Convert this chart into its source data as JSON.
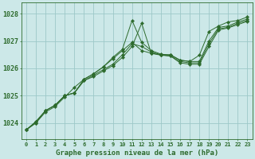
{
  "title": "Graphe pression niveau de la mer (hPa)",
  "xlabel_hours": [
    0,
    1,
    2,
    3,
    4,
    5,
    6,
    7,
    8,
    9,
    10,
    11,
    12,
    13,
    14,
    15,
    16,
    17,
    18,
    19,
    20,
    21,
    22,
    23
  ],
  "ylim": [
    1023.4,
    1028.4
  ],
  "yticks": [
    1024,
    1025,
    1026,
    1027,
    1028
  ],
  "bg_color": "#cce8e8",
  "grid_color": "#9dc8c8",
  "line_color": "#2d6b2d",
  "series": [
    [
      1023.75,
      1024.0,
      1024.45,
      1024.65,
      1025.0,
      1025.1,
      1025.6,
      1025.8,
      1026.05,
      1026.35,
      1026.65,
      1026.95,
      1026.65,
      1026.55,
      1026.5,
      1026.5,
      1026.3,
      1026.25,
      1026.25,
      1027.0,
      1027.5,
      1027.55,
      1027.7,
      1027.8
    ],
    [
      1023.75,
      1024.05,
      1024.45,
      1024.65,
      1025.0,
      1025.1,
      1025.55,
      1025.75,
      1025.95,
      1026.15,
      1026.5,
      1026.9,
      1026.8,
      1026.6,
      1026.5,
      1026.45,
      1026.25,
      1026.2,
      1026.2,
      1026.9,
      1027.45,
      1027.5,
      1027.65,
      1027.75
    ],
    [
      1023.75,
      1024.05,
      1024.45,
      1024.65,
      1025.0,
      1025.1,
      1025.55,
      1025.7,
      1025.9,
      1026.1,
      1026.4,
      1026.8,
      1027.65,
      1026.55,
      1026.48,
      1026.45,
      1026.2,
      1026.15,
      1026.15,
      1026.8,
      1027.4,
      1027.48,
      1027.6,
      1027.72
    ],
    [
      1023.75,
      1024.0,
      1024.4,
      1024.6,
      1024.95,
      1025.3,
      1025.6,
      1025.8,
      1026.05,
      1026.4,
      1026.7,
      1027.75,
      1026.95,
      1026.65,
      1026.52,
      1026.48,
      1026.3,
      1026.25,
      1026.48,
      1027.35,
      1027.55,
      1027.7,
      1027.75,
      1027.88
    ]
  ]
}
